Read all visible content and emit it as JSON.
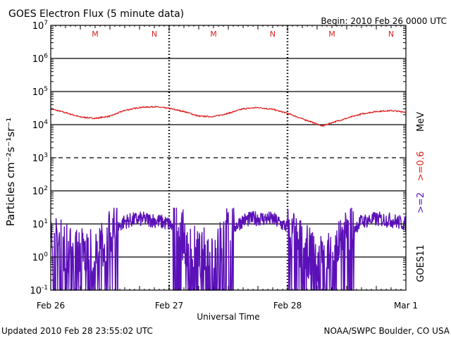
{
  "header": {
    "title": "GOES Electron Flux (5 minute data)",
    "begin": "Begin: 2010 Feb 26 0000 UTC"
  },
  "footer": {
    "updated": "Updated 2010 Feb 28 23:55:02 UTC",
    "credit": "NOAA/SWPC Boulder, CO USA"
  },
  "colors": {
    "high_energy": "#dd2222",
    "low_energy": "#5b10b8",
    "marker": "#dd2222"
  },
  "chart_data": {
    "type": "line",
    "title": "GOES Electron Flux (5 minute data)",
    "xlabel": "Universal Time",
    "ylabel": "Particles cm⁻²s⁻¹sr⁻¹",
    "y_scale": "log",
    "ylim": [
      0.1,
      10000000
    ],
    "y_tick_labels": [
      {
        "base": "10",
        "exp": "7",
        "value": 10000000
      },
      {
        "base": "10",
        "exp": "6",
        "value": 1000000
      },
      {
        "base": "10",
        "exp": "5",
        "value": 100000
      },
      {
        "base": "10",
        "exp": "4",
        "value": 10000
      },
      {
        "base": "10",
        "exp": "3",
        "value": 1000
      },
      {
        "base": "10",
        "exp": "2",
        "value": 100
      },
      {
        "base": "10",
        "exp": "1",
        "value": 10
      },
      {
        "base": "10",
        "exp": "0",
        "value": 1
      },
      {
        "base": "10",
        "exp": "-1",
        "value": 0.1
      }
    ],
    "x_unit": "hours since Feb 26 0000 UTC",
    "xlim": [
      0,
      72
    ],
    "x_tick_labels": [
      {
        "label": "Feb 26",
        "hour": 0
      },
      {
        "label": "Feb 27",
        "hour": 24
      },
      {
        "label": "Feb 28",
        "hour": 48
      },
      {
        "label": "Mar 1",
        "hour": 72
      }
    ],
    "horizontal_gridlines": [
      1000000,
      100000,
      10000,
      1000,
      100,
      10,
      1
    ],
    "dashed_gridline": 1000,
    "midnight_markers": [
      {
        "hour": 9,
        "label": "M"
      },
      {
        "hour": 21,
        "label": "N"
      },
      {
        "hour": 33,
        "label": "M"
      },
      {
        "hour": 45,
        "label": "N"
      },
      {
        "hour": 57,
        "label": "M"
      },
      {
        "hour": 69,
        "label": "N"
      }
    ],
    "right_labels": {
      "high": ">=0.6",
      "low": ">=2",
      "unit": "MeV",
      "satellite": "GOES11"
    },
    "series": [
      {
        "name": ">=0.6 MeV",
        "color": "#dd2222",
        "x": [
          0,
          3,
          6,
          9,
          12,
          15,
          18,
          21,
          24,
          27,
          30,
          33,
          36,
          39,
          42,
          45,
          48,
          51,
          54,
          55,
          57,
          60,
          63,
          66,
          69,
          72
        ],
        "y": [
          30000,
          23000,
          17000,
          15500,
          18000,
          27000,
          33000,
          35000,
          31000,
          25000,
          18000,
          17500,
          22000,
          30000,
          33000,
          29000,
          22000,
          15000,
          10500,
          9000,
          11500,
          15500,
          21000,
          25000,
          26500,
          24000
        ]
      },
      {
        "name": ">=2 MeV",
        "color": "#5b10b8",
        "x": [
          0,
          3,
          6,
          9,
          12,
          15,
          18,
          21,
          24,
          27,
          30,
          33,
          36,
          39,
          42,
          45,
          48,
          51,
          54,
          57,
          60,
          63,
          66,
          69,
          72
        ],
        "y": [
          3,
          2,
          1.5,
          1,
          5,
          12,
          14,
          13,
          10,
          4,
          1,
          2,
          6,
          13,
          15,
          14,
          8,
          2,
          0.8,
          1.5,
          5,
          12,
          14,
          13,
          10
        ]
      }
    ]
  }
}
